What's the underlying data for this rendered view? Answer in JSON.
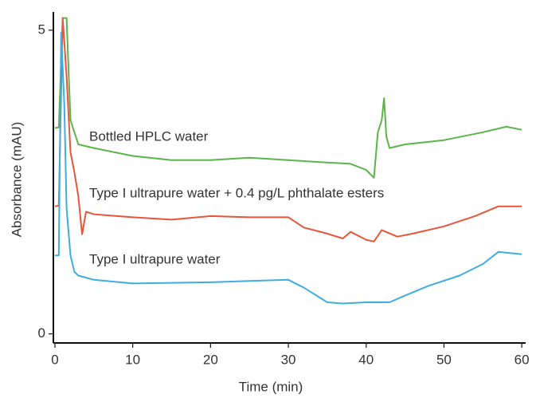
{
  "chart_data": {
    "type": "line",
    "x_label": "Time (min)",
    "y_label": "Absorbance (mAU)",
    "xlim": [
      -0.2,
      60.5
    ],
    "ylim": [
      -0.15,
      5.3
    ],
    "xticks": [
      0,
      10,
      20,
      30,
      40,
      50,
      60
    ],
    "yticks": [
      0,
      5
    ],
    "series": [
      {
        "name": "Bottled HPLC water",
        "color": "#5ab54a",
        "x": [
          0,
          0.5,
          1,
          1.5,
          2,
          3,
          5,
          10,
          15,
          20,
          25,
          30,
          35,
          38,
          40,
          41,
          41.5,
          42,
          42.3,
          42.6,
          43,
          45,
          50,
          55,
          58,
          60
        ],
        "values": [
          3.39,
          3.4,
          5.2,
          5.2,
          3.52,
          3.12,
          3.06,
          2.93,
          2.86,
          2.86,
          2.9,
          2.86,
          2.82,
          2.8,
          2.7,
          2.57,
          3.32,
          3.52,
          3.88,
          3.25,
          3.06,
          3.12,
          3.19,
          3.32,
          3.41,
          3.36
        ]
      },
      {
        "name": "Type I ultrapure water  + 0.4 pg/L phthalate esters",
        "color": "#e8553a",
        "x": [
          0,
          0.5,
          1,
          1.5,
          2,
          2.5,
          3,
          3.5,
          4,
          5,
          10,
          15,
          20,
          25,
          30,
          32,
          35,
          37,
          38,
          40,
          41,
          42,
          44,
          46,
          50,
          54,
          57,
          60
        ],
        "values": [
          2.1,
          2.11,
          5.2,
          4.24,
          2.99,
          2.66,
          2.27,
          1.64,
          2.01,
          1.97,
          1.92,
          1.88,
          1.94,
          1.92,
          1.92,
          1.75,
          1.65,
          1.57,
          1.68,
          1.55,
          1.52,
          1.71,
          1.6,
          1.65,
          1.77,
          1.94,
          2.1,
          2.1
        ]
      },
      {
        "name": "Type I ultrapure water",
        "color": "#3eaee0",
        "x": [
          0,
          0.5,
          0.8,
          1.2,
          1.5,
          2,
          2.5,
          3,
          5,
          10,
          20,
          25,
          30,
          32,
          35,
          37,
          40,
          43,
          45,
          48,
          52,
          55,
          57,
          60
        ],
        "values": [
          1.29,
          1.29,
          4.96,
          3.78,
          2.07,
          1.29,
          1.02,
          0.96,
          0.89,
          0.83,
          0.85,
          0.87,
          0.89,
          0.76,
          0.52,
          0.5,
          0.52,
          0.52,
          0.63,
          0.79,
          0.96,
          1.15,
          1.35,
          1.31
        ]
      }
    ]
  }
}
